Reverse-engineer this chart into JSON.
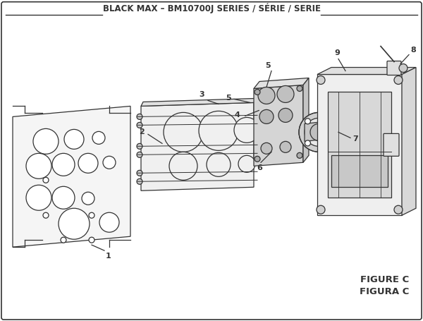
{
  "title": "BLACK MAX – BM10700J SERIES / SÉRIE / SERIE",
  "figure_label": "FIGURE C",
  "figura_label": "FIGURA C",
  "bg_color": "#ffffff",
  "line_color": "#333333",
  "title_fontsize": 8.5,
  "label_fontsize": 8,
  "figure_fontsize": 9.5
}
